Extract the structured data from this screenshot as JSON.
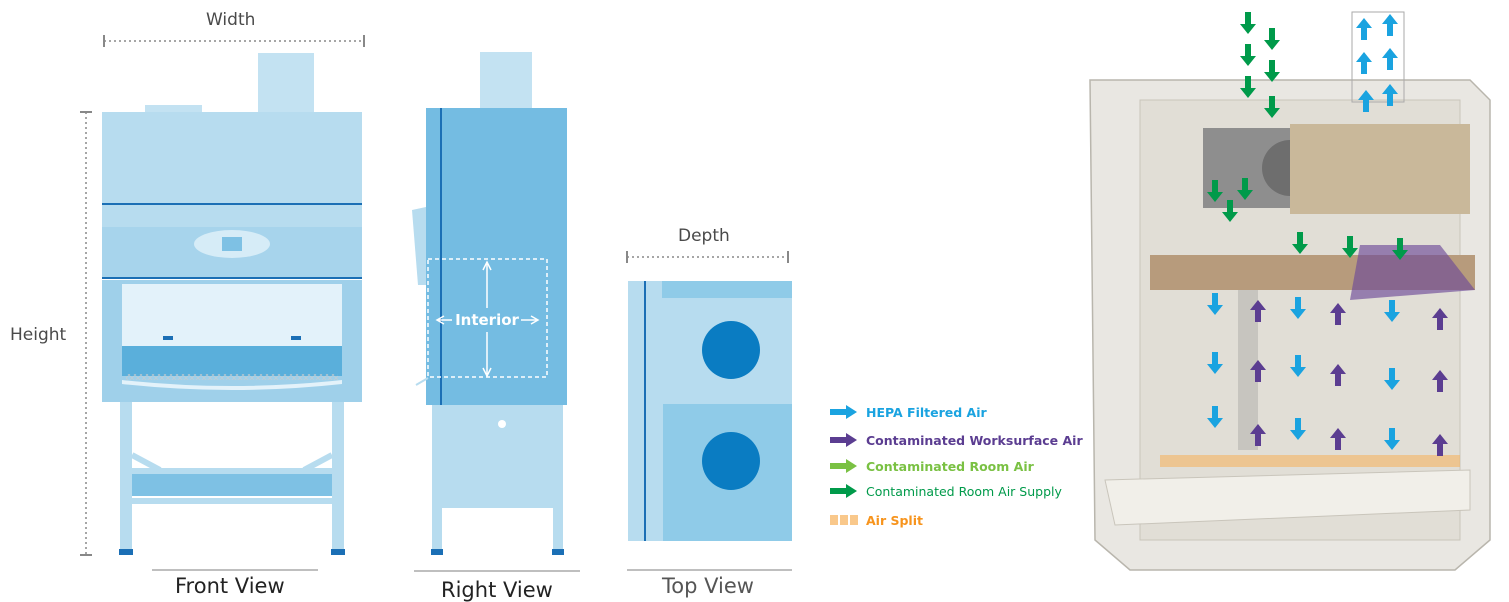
{
  "dimensions": {
    "width": "Width",
    "height": "Height",
    "depth": "Depth",
    "interior": "Interior"
  },
  "views": {
    "front": "Front View",
    "right": "Right View",
    "top": "Top View"
  },
  "legend": [
    {
      "label": "HEPA Filtered Air",
      "color": "#1aa3e0",
      "icon": "arrow-icon"
    },
    {
      "label": "Contaminated Worksurface Air",
      "color": "#5b3d91",
      "icon": "arrow-icon"
    },
    {
      "label": "Contaminated Room Air",
      "color": "#7ac143",
      "icon": "arrow-icon"
    },
    {
      "label": "Contaminated Room Air Supply",
      "color": "#009a4a",
      "icon": "arrow-icon"
    },
    {
      "label": "Air Split",
      "color": "#f7941d",
      "icon": "air-split-icon"
    }
  ],
  "colors": {
    "cabinet_light": "#b7dcef",
    "cabinet_mid": "#8fcbe8",
    "cabinet_dark": "#5aafdb",
    "accent_line": "#1b6fb5",
    "circle": "#0a7cc2",
    "frame_tan": "#d8c9ad"
  }
}
